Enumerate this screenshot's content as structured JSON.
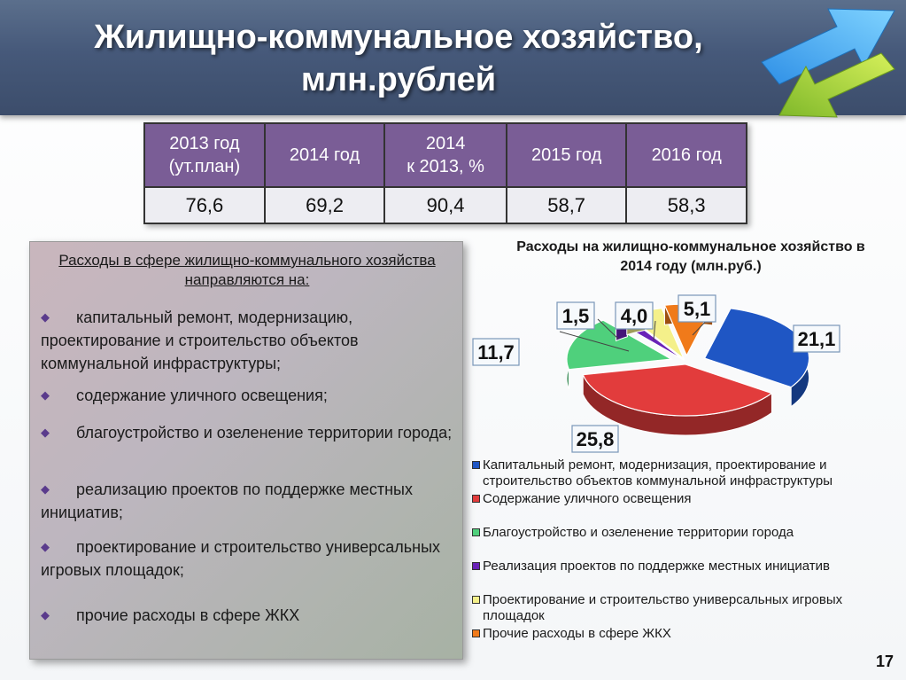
{
  "header": {
    "title_line1": "Жилищно-коммунальное хозяйство,",
    "title_line2": "млн.рублей"
  },
  "table": {
    "headers": [
      {
        "line1": "2013 год",
        "line2": "(ут.план)"
      },
      {
        "line1": "2014 год",
        "line2": ""
      },
      {
        "line1": "2014",
        "line2": "к 2013, %"
      },
      {
        "line1": "2015 год",
        "line2": ""
      },
      {
        "line1": "2016 год",
        "line2": ""
      }
    ],
    "values": [
      "76,6",
      "69,2",
      "90,4",
      "58,7",
      "58,3"
    ]
  },
  "panel": {
    "title": "Расходы в сфере жилищно-коммунального хозяйства направляются на:",
    "bullets": [
      "капитальный ремонт, модернизацию, проектирование и строительство объектов коммунальной инфраструктуры;",
      "содержание уличного освещения;",
      "благоустройство и озеленение территории города;",
      "реализацию проектов по поддержке местных инициатив;",
      "проектирование и строительство универсальных игровых площадок;",
      "прочие расходы в сфере ЖКХ"
    ]
  },
  "chart_data": {
    "type": "pie",
    "title": "Расходы на жилищно-коммунальное хозяйство в 2014 году (млн.руб.)",
    "categories": [
      "Капитальный ремонт, модернизация, проектирование и строительство объектов коммунальной инфраструктуры",
      "Содержание уличного освещения",
      "Благоустройство и озеленение территории города",
      "Реализация проектов по поддержке местных инициатив",
      "Проектирование и строительство универсальных игровых площадок",
      "Прочие расходы в сфере ЖКХ"
    ],
    "values": [
      21.1,
      25.8,
      11.7,
      1.5,
      4.0,
      5.1
    ],
    "labels": [
      "21,1",
      "25,8",
      "11,7",
      "1,5",
      "4,0",
      "5,1"
    ],
    "colors": [
      "#1f56c4",
      "#e23c3c",
      "#4fd07c",
      "#6a22b8",
      "#f4f08a",
      "#f07a1a"
    ],
    "legend_position": "bottom"
  },
  "page_number": "17"
}
